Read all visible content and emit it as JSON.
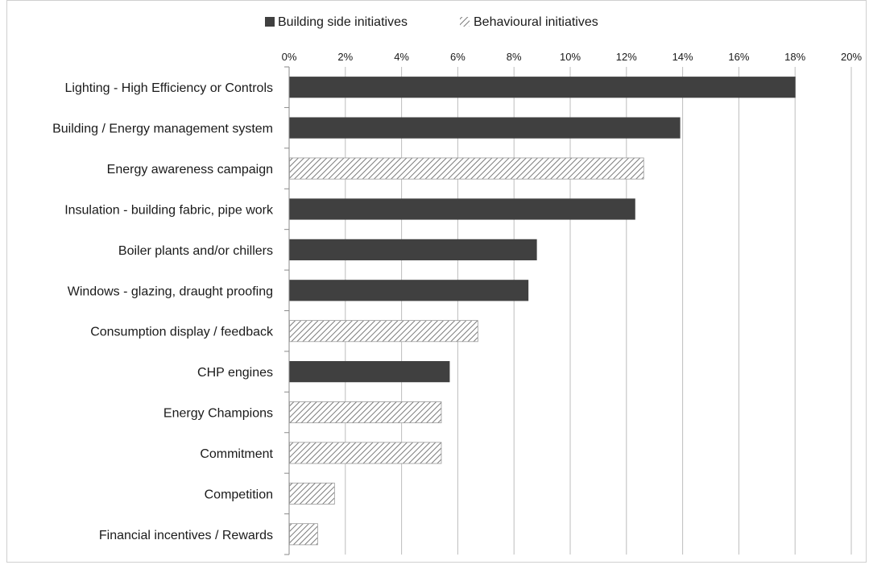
{
  "chart_data": {
    "type": "bar",
    "orientation": "horizontal",
    "xlim": [
      0,
      20
    ],
    "x_unit": "%",
    "x_ticks": [
      "0%",
      "2%",
      "4%",
      "6%",
      "8%",
      "10%",
      "12%",
      "14%",
      "16%",
      "18%",
      "20%"
    ],
    "grid": true,
    "legend_position": "top",
    "legend": [
      {
        "name": "Building side initiatives",
        "style": "solid",
        "color": "#404040"
      },
      {
        "name": "Behavioural initiatives",
        "style": "hatched",
        "color": "#7a7a7a"
      }
    ],
    "categories": [
      "Lighting - High Efficiency or Controls",
      "Building / Energy management system",
      "Energy awareness campaign",
      "Insulation - building fabric, pipe work",
      "Boiler plants and/or chillers",
      "Windows - glazing, draught proofing",
      "Consumption display / feedback",
      "CHP engines",
      "Energy Champions",
      "Commitment",
      "Competition",
      "Financial incentives / Rewards"
    ],
    "values": [
      18.0,
      13.9,
      12.6,
      12.3,
      8.8,
      8.5,
      6.7,
      5.7,
      5.4,
      5.4,
      1.6,
      1.0
    ],
    "series_index": [
      0,
      0,
      1,
      0,
      0,
      0,
      1,
      0,
      1,
      1,
      1,
      1
    ]
  }
}
